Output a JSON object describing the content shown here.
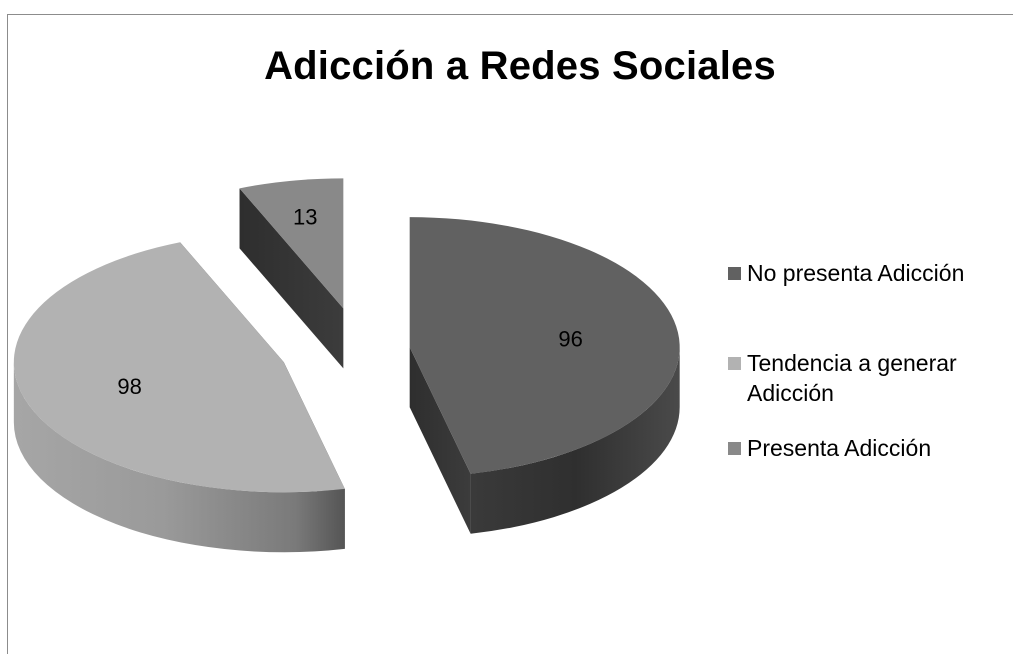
{
  "chart_data": {
    "type": "pie",
    "style": "3d-exploded",
    "title": "Adicción a Redes Sociales",
    "categories": [
      "No presenta Adicción",
      "Tendencia a generar Adicción",
      "Presenta Adicción"
    ],
    "values": [
      96,
      98,
      13
    ],
    "data_labels": [
      "96",
      "98",
      "13"
    ],
    "legend_position": "right",
    "colors": {
      "No presenta Adicción": "#616161",
      "Tendencia a generar Adicción": "#b2b2b2",
      "Presenta Adicción": "#898989"
    }
  }
}
